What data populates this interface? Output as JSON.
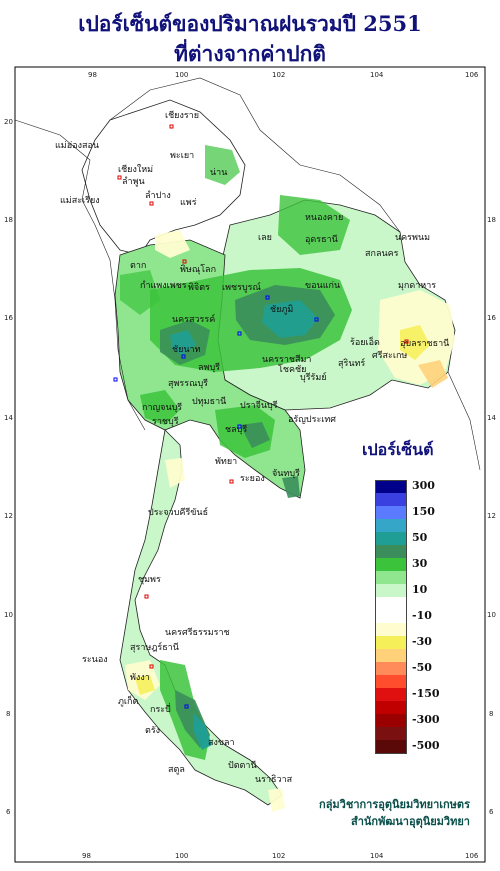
{
  "title": {
    "line1": "เปอร์เซ็นต์ของปริมาณฝนรวมปี  2551",
    "line2": "ที่ต่างจากค่าปกติ"
  },
  "axes": {
    "x_ticks": [
      "98",
      "100",
      "102",
      "104",
      "106"
    ],
    "y_ticks": [
      "20",
      "18",
      "16",
      "14",
      "12",
      "10",
      "8",
      "6"
    ]
  },
  "legend": {
    "title": "เปอร์เซ็นต์",
    "bins": [
      {
        "label": "300",
        "color": "#00008b"
      },
      {
        "label": "",
        "color": "#3a40e0"
      },
      {
        "label": "150",
        "color": "#5a7bff"
      },
      {
        "label": "",
        "color": "#36a6c8"
      },
      {
        "label": "50",
        "color": "#1f9e95"
      },
      {
        "label": "",
        "color": "#3b8e5b"
      },
      {
        "label": "30",
        "color": "#3cc33c"
      },
      {
        "label": "",
        "color": "#8fe68f"
      },
      {
        "label": "10",
        "color": "#c9f7c9"
      },
      {
        "label": "",
        "color": "#ffffff"
      },
      {
        "label": "-10",
        "color": "#ffffff"
      },
      {
        "label": "",
        "color": "#fffdd0"
      },
      {
        "label": "-30",
        "color": "#f5f05a"
      },
      {
        "label": "",
        "color": "#ffd27a"
      },
      {
        "label": "-50",
        "color": "#ff8a5a"
      },
      {
        "label": "",
        "color": "#ff4d2e"
      },
      {
        "label": "-150",
        "color": "#e01010"
      },
      {
        "label": "",
        "color": "#c00000"
      },
      {
        "label": "-300",
        "color": "#9a0000"
      },
      {
        "label": "",
        "color": "#7a1010"
      },
      {
        "label": "-500",
        "color": "#5a0808"
      }
    ]
  },
  "places": [
    {
      "name": "แม่ฮ่องสอน"
    },
    {
      "name": "เชียงราย"
    },
    {
      "name": "พะเยา"
    },
    {
      "name": "น่าน"
    },
    {
      "name": "เชียงใหม่"
    },
    {
      "name": "ลำพูน"
    },
    {
      "name": "ลำปาง"
    },
    {
      "name": "แพร่"
    },
    {
      "name": "แม่สะเรียง"
    },
    {
      "name": "ตาก"
    },
    {
      "name": "พิษณุโลก"
    },
    {
      "name": "เลย"
    },
    {
      "name": "หนองคาย"
    },
    {
      "name": "อุดรธานี"
    },
    {
      "name": "สกลนคร"
    },
    {
      "name": "นครพนม"
    },
    {
      "name": "มุกดาหาร"
    },
    {
      "name": "กำแพงเพชร"
    },
    {
      "name": "พิจิตร"
    },
    {
      "name": "เพชรบูรณ์"
    },
    {
      "name": "ขอนแก่น"
    },
    {
      "name": "นครสวรรค์"
    },
    {
      "name": "ชัยนาท"
    },
    {
      "name": "ลพบุรี"
    },
    {
      "name": "ชัยภูมิ"
    },
    {
      "name": "นครราชสีมา"
    },
    {
      "name": "โชคชัย"
    },
    {
      "name": "บุรีรัมย์"
    },
    {
      "name": "สุรินทร์"
    },
    {
      "name": "ร้อยเอ็ด"
    },
    {
      "name": "ศรีสะเกษ"
    },
    {
      "name": "อุบลราชธานี"
    },
    {
      "name": "สุพรรณบุรี"
    },
    {
      "name": "กาญจนบุรี"
    },
    {
      "name": "ราชบุรี"
    },
    {
      "name": "ปทุมธานี"
    },
    {
      "name": "ปราจีนบุรี"
    },
    {
      "name": "อรัญประเทศ"
    },
    {
      "name": "ชลบุรี"
    },
    {
      "name": "พัทยา"
    },
    {
      "name": "ระยอง"
    },
    {
      "name": "จันทบุรี"
    },
    {
      "name": "ประจวบคีรีขันธ์"
    },
    {
      "name": "ชุมพร"
    },
    {
      "name": "ระนอง"
    },
    {
      "name": "สุราษฎร์ธานี"
    },
    {
      "name": "นครศรีธรรมราช"
    },
    {
      "name": "ภูเก็ต"
    },
    {
      "name": "กระบี่"
    },
    {
      "name": "ตรัง"
    },
    {
      "name": "สงขลา"
    },
    {
      "name": "ปัตตานี"
    },
    {
      "name": "นราธิวาส"
    },
    {
      "name": "สตูล"
    },
    {
      "name": "พังงา"
    }
  ],
  "credit": {
    "line1": "กลุ่มวิชาการอุตุนิยมวิทยาเกษตร",
    "line2": "สำนักพัฒนาอุตุนิยมวิทยา"
  }
}
